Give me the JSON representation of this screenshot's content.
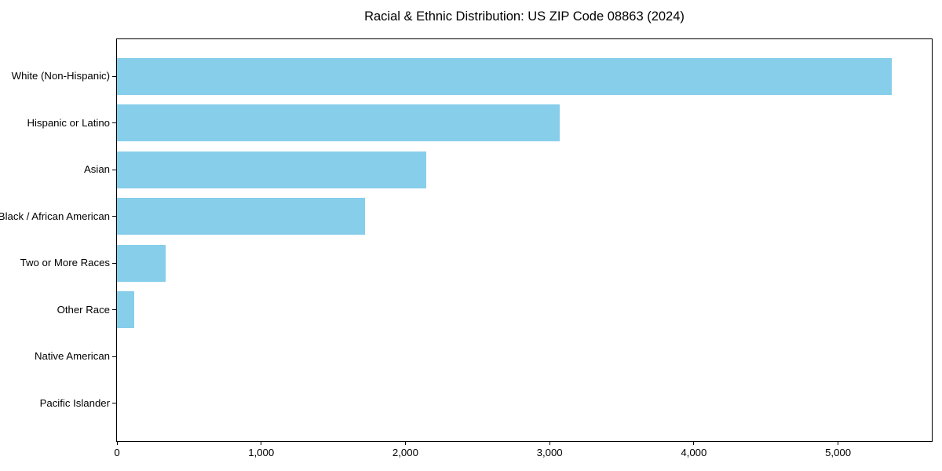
{
  "chart_data": {
    "type": "bar",
    "orientation": "horizontal",
    "title": "Racial & Ethnic Distribution: US ZIP Code 08863 (2024)",
    "categories": [
      "White (Non-Hispanic)",
      "Hispanic or Latino",
      "Asian",
      "Black / African American",
      "Two or More Races",
      "Other Race",
      "Native American",
      "Pacific Islander"
    ],
    "values": [
      5370,
      3070,
      2145,
      1720,
      335,
      120,
      0,
      0
    ],
    "xlabel": "",
    "ylabel": "",
    "xlim": [
      0,
      5650
    ],
    "xticks": [
      0,
      1000,
      2000,
      3000,
      4000,
      5000
    ],
    "xtick_labels": [
      "0",
      "1,000",
      "2,000",
      "3,000",
      "4,000",
      "5,000"
    ],
    "bar_color": "#87CEEB",
    "frame_color": "#000000",
    "text_color": "#000000",
    "background": "#ffffff",
    "grid": false,
    "legend": null
  }
}
